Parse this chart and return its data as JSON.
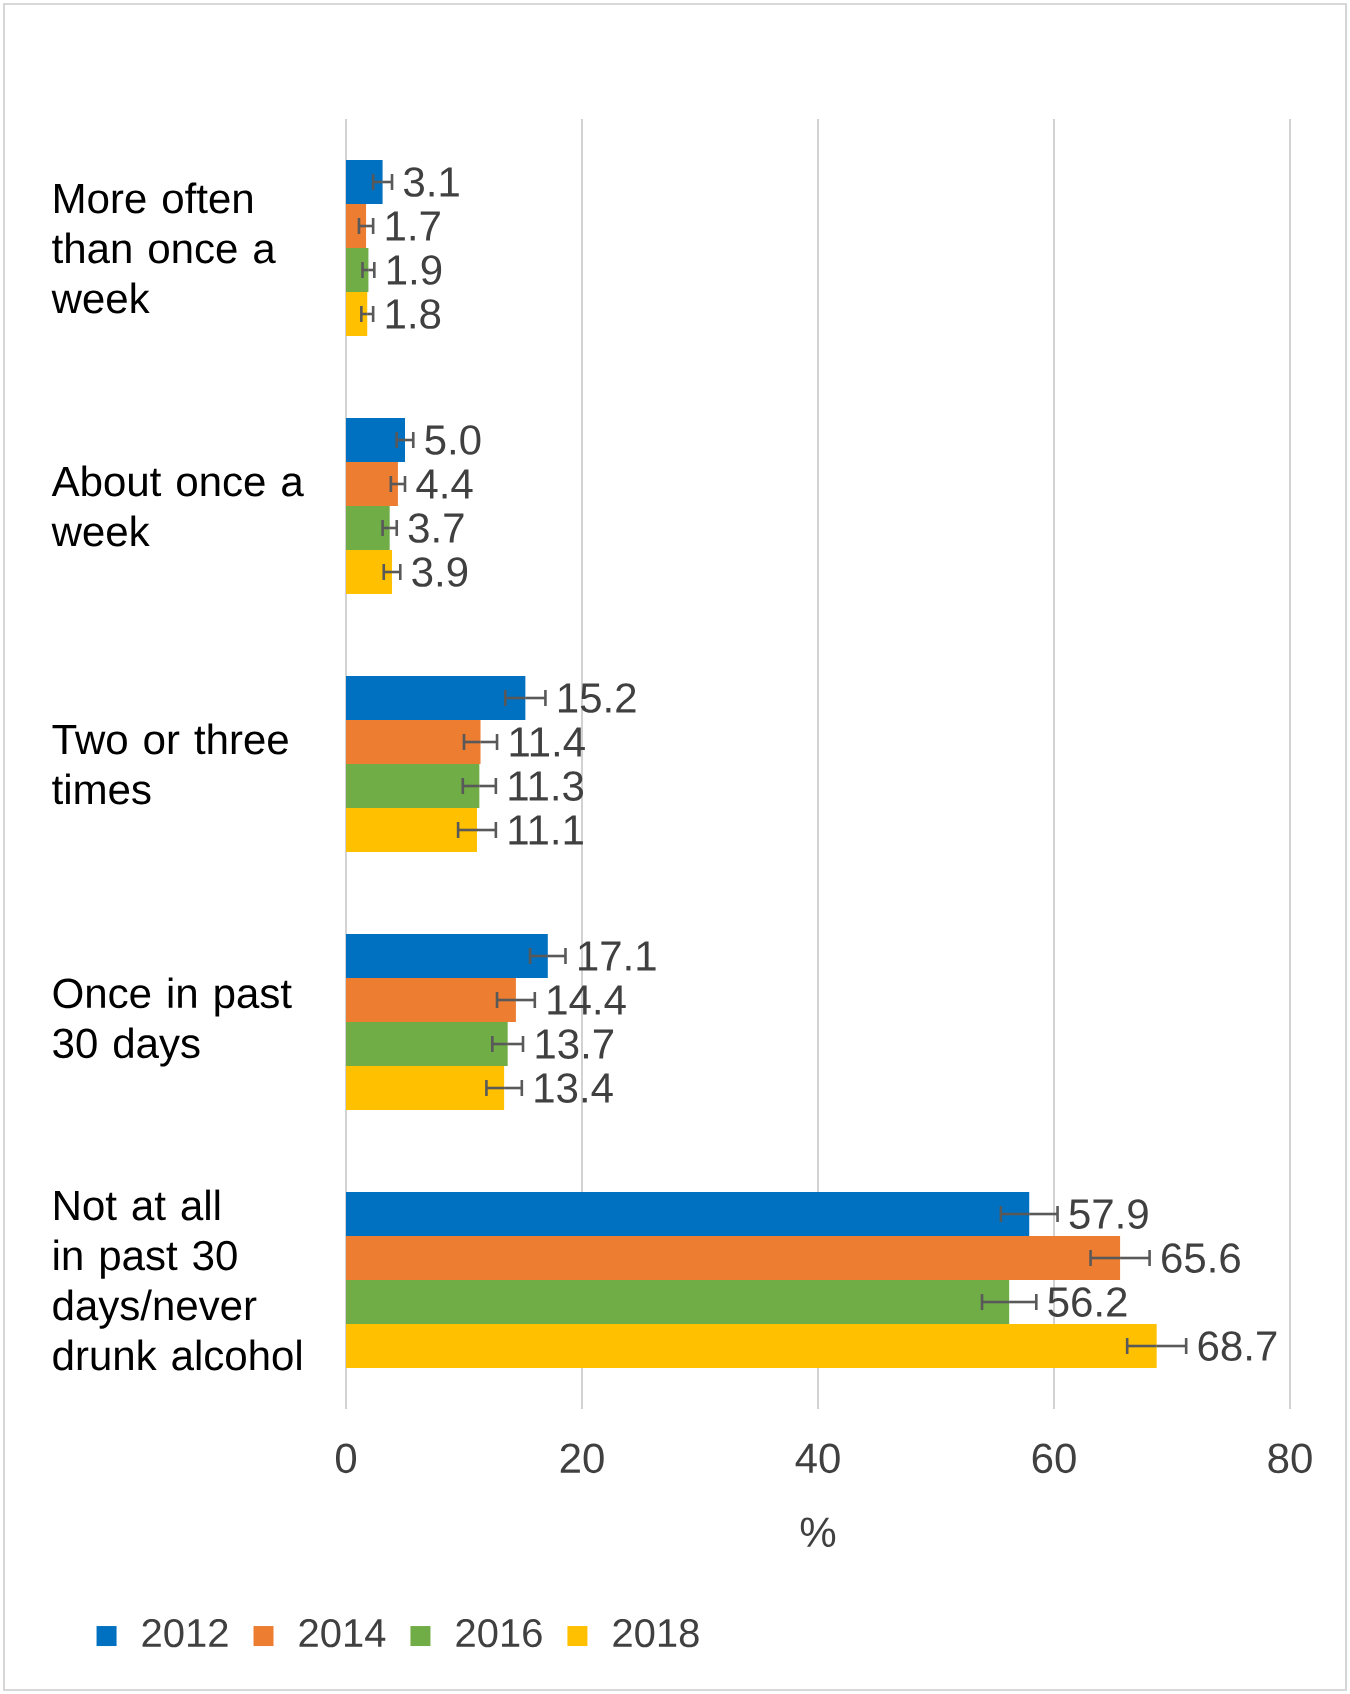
{
  "chart_data": {
    "type": "bar",
    "orientation": "horizontal",
    "xlabel": "%",
    "categories": [
      "More often than once a week",
      "About once a week",
      "Two or three times",
      "Once in past 30 days",
      "Not at all in past 30 days/never drunk alcohol"
    ],
    "series": [
      {
        "name": "2012",
        "color": "#0070c0",
        "values": [
          3.1,
          5.0,
          15.2,
          17.1,
          57.9
        ],
        "value_labels": [
          "3.1",
          "5.0",
          "15.2",
          "17.1",
          "57.9"
        ],
        "errors": [
          0.8,
          0.7,
          1.7,
          1.5,
          2.4
        ]
      },
      {
        "name": "2014",
        "color": "#ed7d31",
        "values": [
          1.7,
          4.4,
          11.4,
          14.4,
          65.6
        ],
        "value_labels": [
          "1.7",
          "4.4",
          "11.4",
          "14.4",
          "65.6"
        ],
        "errors": [
          0.6,
          0.6,
          1.4,
          1.6,
          2.5
        ]
      },
      {
        "name": "2016",
        "color": "#70ad47",
        "values": [
          1.9,
          3.7,
          11.3,
          13.7,
          56.2
        ],
        "value_labels": [
          "1.9",
          "3.7",
          "11.3",
          "13.7",
          "56.2"
        ],
        "errors": [
          0.5,
          0.6,
          1.4,
          1.3,
          2.3
        ]
      },
      {
        "name": "2018",
        "color": "#ffc000",
        "values": [
          1.8,
          3.9,
          11.1,
          13.4,
          68.7
        ],
        "value_labels": [
          "1.8",
          "3.9",
          "11.1",
          "13.4",
          "68.7"
        ],
        "errors": [
          0.5,
          0.7,
          1.6,
          1.5,
          2.5
        ]
      }
    ],
    "xlim": [
      0,
      80
    ],
    "xticks": [
      0,
      20,
      40,
      60,
      80
    ],
    "grid": "x",
    "legend": "bottom"
  }
}
